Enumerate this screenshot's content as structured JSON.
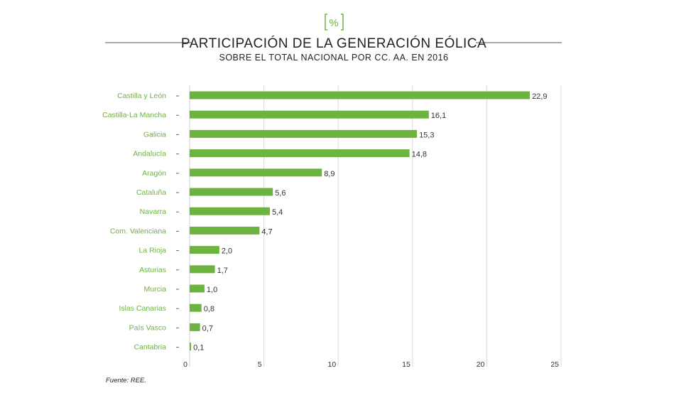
{
  "header": {
    "icon_label": "%",
    "title": "PARTICIPACIÓN DE LA GENERACIÓN EÓLICA",
    "subtitle": "SOBRE EL TOTAL NACIONAL POR CC. AA. EN 2016"
  },
  "source": "Fuente: REE.",
  "colors": {
    "bar": "#6db33f",
    "label": "#6db33f",
    "grid": "#d9d9d9"
  },
  "chart_data": {
    "type": "bar",
    "orientation": "horizontal",
    "title": "PARTICIPACIÓN DE LA GENERACIÓN EÓLICA",
    "subtitle": "SOBRE EL TOTAL NACIONAL POR CC. AA. EN 2016",
    "categories": [
      "Castilla y León",
      "Castilla-La Mancha",
      "Galicia",
      "Andalucía",
      "Aragón",
      "Cataluña",
      "Navarra",
      "Com. Valenciana",
      "La Rioja",
      "Asturias",
      "Murcia",
      "Islas Canarias",
      "País Vasco",
      "Cantabria"
    ],
    "values": [
      22.9,
      16.1,
      15.3,
      14.8,
      8.9,
      5.6,
      5.4,
      4.7,
      2.0,
      1.7,
      1.0,
      0.8,
      0.7,
      0.1
    ],
    "value_labels": [
      "22,9",
      "16,1",
      "15,3",
      "14,8",
      "8,9",
      "5,6",
      "5,4",
      "4,7",
      "2,0",
      "1,7",
      "1,0",
      "0,8",
      "0,7",
      "0,1"
    ],
    "xlim": [
      0,
      25
    ],
    "xticks": [
      0,
      5,
      10,
      15,
      20,
      25
    ],
    "xtick_labels": [
      "0",
      "5",
      "10",
      "15",
      "20",
      "25"
    ],
    "grid": true,
    "xlabel": "",
    "ylabel": ""
  }
}
